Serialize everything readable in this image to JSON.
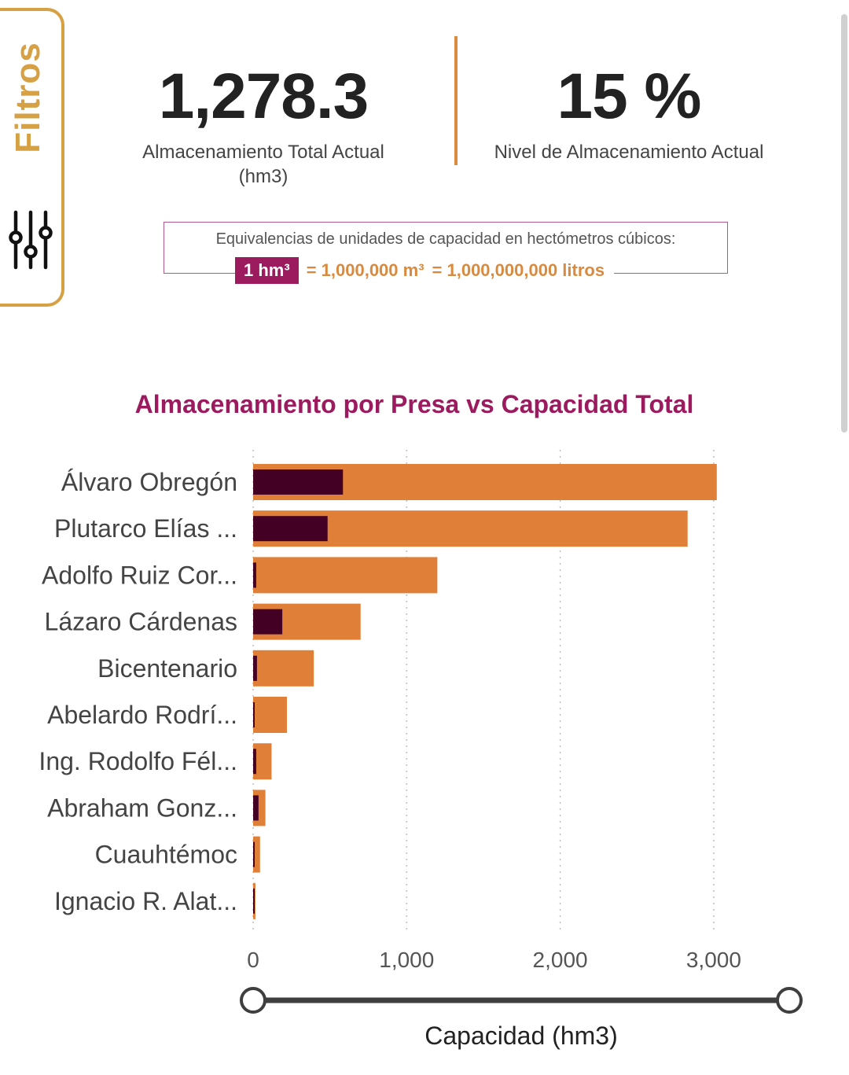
{
  "filter_tab": {
    "label": "Filtros",
    "icon": "sliders-icon"
  },
  "kpis": [
    {
      "value": "1,278.3",
      "label_line1": "Almacenamiento Total Actual",
      "label_line2": "(hm3)"
    },
    {
      "value": "15 %",
      "label_line1": "Nivel de Almacenamiento Actual",
      "label_line2": ""
    }
  ],
  "equivalence": {
    "text": "Equivalencias de unidades de capacidad en hectómetros cúbicos:",
    "unit": "1 hm³",
    "eq1": "= 1,000,000 m³",
    "eq2": "= 1,000,000,000 litros"
  },
  "colors": {
    "accent": "#9b1b5e",
    "capacity_bar": "#df7f38",
    "storage_bar": "#430024",
    "gold": "#d6a045"
  },
  "chart_data": {
    "type": "bar",
    "orientation": "horizontal",
    "title": "Almacenamiento por Presa vs Capacidad Total",
    "xlabel": "Capacidad (hm3)",
    "ylabel": "",
    "xlim": [
      0,
      3500
    ],
    "xticks": [
      0,
      1000,
      2000,
      3000
    ],
    "xtick_labels": [
      "0",
      "1,000",
      "2,000",
      "3,000"
    ],
    "grid": "vertical-dotted",
    "categories": [
      "Álvaro Obregón",
      "Plutarco Elías ...",
      "Adolfo Ruiz Cor...",
      "Lázaro Cárdenas",
      "Bicentenario",
      "Abelardo Rodrí...",
      "Ing. Rodolfo Fél...",
      "Abraham Gonz...",
      "Cuauhtémoc",
      "Ignacio R. Alat..."
    ],
    "series": [
      {
        "values": [
          3020,
          2830,
          1200,
          700,
          395,
          220,
          120,
          80,
          45,
          15
        ]
      },
      {
        "values": [
          585,
          485,
          20,
          190,
          25,
          5,
          20,
          35,
          10,
          5
        ]
      }
    ],
    "range_slider": {
      "min": 0,
      "max": 3500
    }
  }
}
